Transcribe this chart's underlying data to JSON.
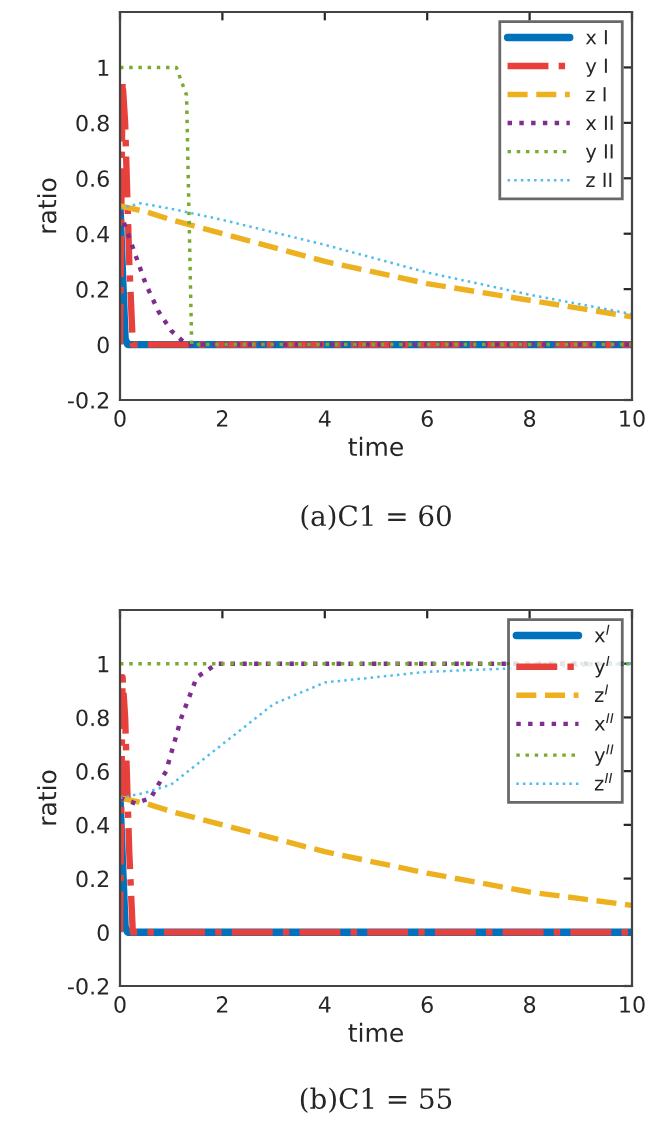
{
  "chart_data": [
    {
      "type": "line",
      "xlabel": "time",
      "ylabel": "ratio",
      "annotations": [
        "(a)C1 = 60"
      ],
      "xlim": [
        0,
        10
      ],
      "ylim": [
        -0.2,
        1.2
      ],
      "xticks": [
        0,
        2,
        4,
        6,
        8,
        10
      ],
      "yticks": [
        -0.2,
        0,
        0.2,
        0.4,
        0.6,
        0.8,
        1
      ],
      "legend": "top right",
      "grid": false,
      "series": [
        {
          "name": "x I",
          "color": "#0072bd",
          "line_style": "solid",
          "x": [
            0,
            0.05,
            0.1,
            0.15,
            10
          ],
          "values": [
            0.5,
            0.25,
            0.02,
            0,
            0
          ]
        },
        {
          "name": "y I",
          "color": "#e8403a",
          "line_style": "dashdot",
          "x": [
            0,
            0.05,
            0.1,
            0.18,
            0.25,
            10
          ],
          "values": [
            0,
            0.95,
            0.8,
            0.3,
            0,
            0
          ]
        },
        {
          "name": "z I",
          "color": "#edb120",
          "line_style": "dashed",
          "x": [
            0,
            0.5,
            1,
            2,
            4,
            6,
            8,
            10
          ],
          "values": [
            0.5,
            0.48,
            0.45,
            0.4,
            0.3,
            0.22,
            0.16,
            0.1
          ]
        },
        {
          "name": "x II",
          "color": "#7e2f8e",
          "line_style": "dotted",
          "x": [
            0,
            0.25,
            0.5,
            0.75,
            1,
            1.3,
            10
          ],
          "values": [
            0.48,
            0.35,
            0.22,
            0.12,
            0.05,
            0,
            0
          ]
        },
        {
          "name": "y II",
          "color": "#77ac30",
          "line_style": "dotted",
          "x": [
            0,
            1.1,
            1.3,
            1.4,
            10
          ],
          "values": [
            1,
            1,
            0.9,
            0,
            0
          ]
        },
        {
          "name": "z II",
          "color": "#4dbeee",
          "line_style": "dotted",
          "x": [
            0,
            0.4,
            1,
            2,
            4,
            6,
            8,
            10
          ],
          "values": [
            0.49,
            0.51,
            0.49,
            0.45,
            0.36,
            0.26,
            0.18,
            0.11
          ]
        }
      ]
    },
    {
      "type": "line",
      "xlabel": "time",
      "ylabel": "ratio",
      "annotations": [
        "(b)C1 = 55"
      ],
      "xlim": [
        0,
        10
      ],
      "ylim": [
        -0.2,
        1.2
      ],
      "xticks": [
        0,
        2,
        4,
        6,
        8,
        10
      ],
      "yticks": [
        -0.2,
        0,
        0.2,
        0.4,
        0.6,
        0.8,
        1
      ],
      "legend": "top right",
      "grid": false,
      "series": [
        {
          "name": "x$^{I}$",
          "color": "#0072bd",
          "line_style": "solid",
          "x": [
            0,
            0.05,
            0.1,
            0.15,
            10
          ],
          "values": [
            0.5,
            0.25,
            0.02,
            0,
            0
          ]
        },
        {
          "name": "y$^{I}$",
          "color": "#e8403a",
          "line_style": "dashdot",
          "x": [
            0,
            0.05,
            0.1,
            0.18,
            0.25,
            10
          ],
          "values": [
            0,
            0.95,
            0.8,
            0.3,
            0,
            0
          ]
        },
        {
          "name": "z$^{I}$",
          "color": "#edb120",
          "line_style": "dashed",
          "x": [
            0,
            0.5,
            1,
            2,
            4,
            6,
            8,
            10
          ],
          "values": [
            0.5,
            0.48,
            0.45,
            0.4,
            0.3,
            0.22,
            0.15,
            0.1
          ]
        },
        {
          "name": "x$^{II}$",
          "color": "#7e2f8e",
          "line_style": "dotted",
          "x": [
            0,
            0.3,
            0.6,
            0.9,
            1.2,
            1.5,
            1.9,
            10
          ],
          "values": [
            0.5,
            0.48,
            0.5,
            0.6,
            0.8,
            0.95,
            1,
            1
          ]
        },
        {
          "name": "y$^{II}$",
          "color": "#77ac30",
          "line_style": "dotted",
          "x": [
            0,
            10
          ],
          "values": [
            1,
            1
          ]
        },
        {
          "name": "z$^{II}$",
          "color": "#4dbeee",
          "line_style": "dotted",
          "x": [
            0,
            0.5,
            1,
            2,
            3,
            4,
            6,
            8,
            10
          ],
          "values": [
            0.5,
            0.52,
            0.55,
            0.7,
            0.85,
            0.93,
            0.97,
            null,
            1
          ]
        }
      ]
    }
  ]
}
